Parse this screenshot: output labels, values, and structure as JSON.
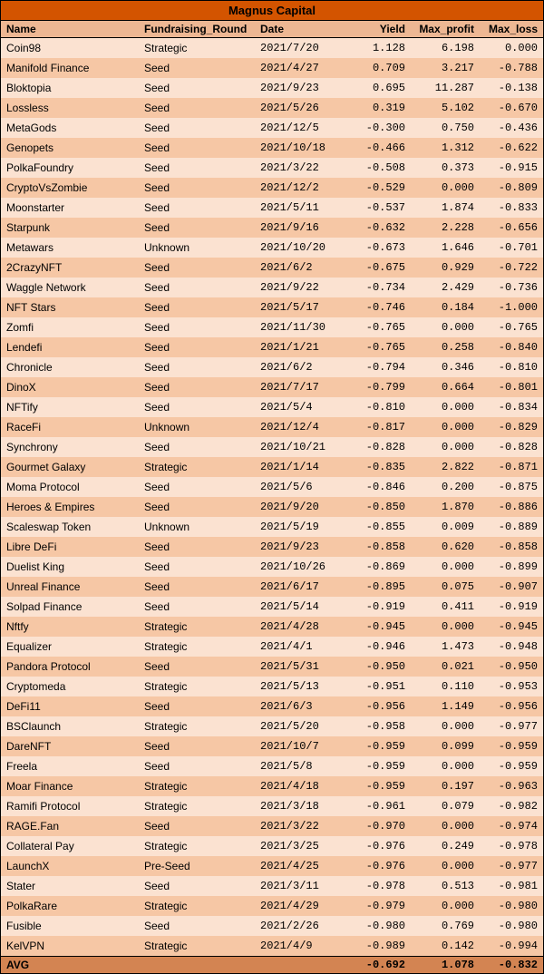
{
  "title": "Magnus Capital",
  "columns": {
    "name": "Name",
    "round": "Fundraising_Round",
    "date": "Date",
    "yield": "Yield",
    "maxp": "Max_profit",
    "maxl": "Max_loss"
  },
  "rows": [
    {
      "name": "Coin98",
      "round": "Strategic",
      "date": "2021/7/20",
      "yield": "1.128",
      "maxp": "6.198",
      "maxl": "0.000"
    },
    {
      "name": "Manifold Finance",
      "round": "Seed",
      "date": "2021/4/27",
      "yield": "0.709",
      "maxp": "3.217",
      "maxl": "-0.788"
    },
    {
      "name": "Bloktopia",
      "round": "Seed",
      "date": "2021/9/23",
      "yield": "0.695",
      "maxp": "11.287",
      "maxl": "-0.138"
    },
    {
      "name": "Lossless",
      "round": "Seed",
      "date": "2021/5/26",
      "yield": "0.319",
      "maxp": "5.102",
      "maxl": "-0.670"
    },
    {
      "name": "MetaGods",
      "round": "Seed",
      "date": "2021/12/5",
      "yield": "-0.300",
      "maxp": "0.750",
      "maxl": "-0.436"
    },
    {
      "name": "Genopets",
      "round": "Seed",
      "date": "2021/10/18",
      "yield": "-0.466",
      "maxp": "1.312",
      "maxl": "-0.622"
    },
    {
      "name": "PolkaFoundry",
      "round": "Seed",
      "date": "2021/3/22",
      "yield": "-0.508",
      "maxp": "0.373",
      "maxl": "-0.915"
    },
    {
      "name": "CryptoVsZombie",
      "round": "Seed",
      "date": "2021/12/2",
      "yield": "-0.529",
      "maxp": "0.000",
      "maxl": "-0.809"
    },
    {
      "name": "Moonstarter",
      "round": "Seed",
      "date": "2021/5/11",
      "yield": "-0.537",
      "maxp": "1.874",
      "maxl": "-0.833"
    },
    {
      "name": "Starpunk",
      "round": "Seed",
      "date": "2021/9/16",
      "yield": "-0.632",
      "maxp": "2.228",
      "maxl": "-0.656"
    },
    {
      "name": "Metawars",
      "round": "Unknown",
      "date": "2021/10/20",
      "yield": "-0.673",
      "maxp": "1.646",
      "maxl": "-0.701"
    },
    {
      "name": "2CrazyNFT",
      "round": "Seed",
      "date": "2021/6/2",
      "yield": "-0.675",
      "maxp": "0.929",
      "maxl": "-0.722"
    },
    {
      "name": "Waggle Network",
      "round": "Seed",
      "date": "2021/9/22",
      "yield": "-0.734",
      "maxp": "2.429",
      "maxl": "-0.736"
    },
    {
      "name": "NFT Stars",
      "round": "Seed",
      "date": "2021/5/17",
      "yield": "-0.746",
      "maxp": "0.184",
      "maxl": "-1.000"
    },
    {
      "name": "Zomfi",
      "round": "Seed",
      "date": "2021/11/30",
      "yield": "-0.765",
      "maxp": "0.000",
      "maxl": "-0.765"
    },
    {
      "name": "Lendefi",
      "round": "Seed",
      "date": "2021/1/21",
      "yield": "-0.765",
      "maxp": "0.258",
      "maxl": "-0.840"
    },
    {
      "name": "Chronicle",
      "round": "Seed",
      "date": "2021/6/2",
      "yield": "-0.794",
      "maxp": "0.346",
      "maxl": "-0.810"
    },
    {
      "name": "DinoX",
      "round": "Seed",
      "date": "2021/7/17",
      "yield": "-0.799",
      "maxp": "0.664",
      "maxl": "-0.801"
    },
    {
      "name": "NFTify",
      "round": "Seed",
      "date": "2021/5/4",
      "yield": "-0.810",
      "maxp": "0.000",
      "maxl": "-0.834"
    },
    {
      "name": "RaceFi",
      "round": "Unknown",
      "date": "2021/12/4",
      "yield": "-0.817",
      "maxp": "0.000",
      "maxl": "-0.829"
    },
    {
      "name": "Synchrony",
      "round": "Seed",
      "date": "2021/10/21",
      "yield": "-0.828",
      "maxp": "0.000",
      "maxl": "-0.828"
    },
    {
      "name": "Gourmet Galaxy",
      "round": "Strategic",
      "date": "2021/1/14",
      "yield": "-0.835",
      "maxp": "2.822",
      "maxl": "-0.871"
    },
    {
      "name": "Moma Protocol",
      "round": "Seed",
      "date": "2021/5/6",
      "yield": "-0.846",
      "maxp": "0.200",
      "maxl": "-0.875"
    },
    {
      "name": "Heroes & Empires",
      "round": "Seed",
      "date": "2021/9/20",
      "yield": "-0.850",
      "maxp": "1.870",
      "maxl": "-0.886"
    },
    {
      "name": "Scaleswap Token",
      "round": "Unknown",
      "date": "2021/5/19",
      "yield": "-0.855",
      "maxp": "0.009",
      "maxl": "-0.889"
    },
    {
      "name": "Libre DeFi",
      "round": "Seed",
      "date": "2021/9/23",
      "yield": "-0.858",
      "maxp": "0.620",
      "maxl": "-0.858"
    },
    {
      "name": "Duelist King",
      "round": "Seed",
      "date": "2021/10/26",
      "yield": "-0.869",
      "maxp": "0.000",
      "maxl": "-0.899"
    },
    {
      "name": "Unreal Finance",
      "round": "Seed",
      "date": "2021/6/17",
      "yield": "-0.895",
      "maxp": "0.075",
      "maxl": "-0.907"
    },
    {
      "name": "Solpad Finance",
      "round": "Seed",
      "date": "2021/5/14",
      "yield": "-0.919",
      "maxp": "0.411",
      "maxl": "-0.919"
    },
    {
      "name": "Nftfy",
      "round": "Strategic",
      "date": "2021/4/28",
      "yield": "-0.945",
      "maxp": "0.000",
      "maxl": "-0.945"
    },
    {
      "name": "Equalizer",
      "round": "Strategic",
      "date": "2021/4/1",
      "yield": "-0.946",
      "maxp": "1.473",
      "maxl": "-0.948"
    },
    {
      "name": "Pandora Protocol",
      "round": "Seed",
      "date": "2021/5/31",
      "yield": "-0.950",
      "maxp": "0.021",
      "maxl": "-0.950"
    },
    {
      "name": "Cryptomeda",
      "round": "Strategic",
      "date": "2021/5/13",
      "yield": "-0.951",
      "maxp": "0.110",
      "maxl": "-0.953"
    },
    {
      "name": "DeFi11",
      "round": "Seed",
      "date": "2021/6/3",
      "yield": "-0.956",
      "maxp": "1.149",
      "maxl": "-0.956"
    },
    {
      "name": "BSClaunch",
      "round": "Strategic",
      "date": "2021/5/20",
      "yield": "-0.958",
      "maxp": "0.000",
      "maxl": "-0.977"
    },
    {
      "name": "DareNFT",
      "round": "Seed",
      "date": "2021/10/7",
      "yield": "-0.959",
      "maxp": "0.099",
      "maxl": "-0.959"
    },
    {
      "name": "Freela",
      "round": "Seed",
      "date": "2021/5/8",
      "yield": "-0.959",
      "maxp": "0.000",
      "maxl": "-0.959"
    },
    {
      "name": "Moar Finance",
      "round": "Strategic",
      "date": "2021/4/18",
      "yield": "-0.959",
      "maxp": "0.197",
      "maxl": "-0.963"
    },
    {
      "name": "Ramifi Protocol",
      "round": "Strategic",
      "date": "2021/3/18",
      "yield": "-0.961",
      "maxp": "0.079",
      "maxl": "-0.982"
    },
    {
      "name": "RAGE.Fan",
      "round": "Seed",
      "date": "2021/3/22",
      "yield": "-0.970",
      "maxp": "0.000",
      "maxl": "-0.974"
    },
    {
      "name": "Collateral Pay",
      "round": "Strategic",
      "date": "2021/3/25",
      "yield": "-0.976",
      "maxp": "0.249",
      "maxl": "-0.978"
    },
    {
      "name": "LaunchX",
      "round": "Pre-Seed",
      "date": "2021/4/25",
      "yield": "-0.976",
      "maxp": "0.000",
      "maxl": "-0.977"
    },
    {
      "name": "Stater",
      "round": "Seed",
      "date": "2021/3/11",
      "yield": "-0.978",
      "maxp": "0.513",
      "maxl": "-0.981"
    },
    {
      "name": "PolkaRare",
      "round": "Strategic",
      "date": "2021/4/29",
      "yield": "-0.979",
      "maxp": "0.000",
      "maxl": "-0.980"
    },
    {
      "name": "Fusible",
      "round": "Seed",
      "date": "2021/2/26",
      "yield": "-0.980",
      "maxp": "0.769",
      "maxl": "-0.980"
    },
    {
      "name": "KelVPN",
      "round": "Strategic",
      "date": "2021/4/9",
      "yield": "-0.989",
      "maxp": "0.142",
      "maxl": "-0.994"
    }
  ],
  "avg": {
    "label": "AVG",
    "yield": "-0.692",
    "maxp": "1.078",
    "maxl": "-0.832"
  },
  "colors": {
    "title_bg": "#d35400",
    "header_bg": "#edb793",
    "row_odd": "#fbe2d1",
    "row_even": "#f6c7a5",
    "avg_bg": "#d38452"
  }
}
